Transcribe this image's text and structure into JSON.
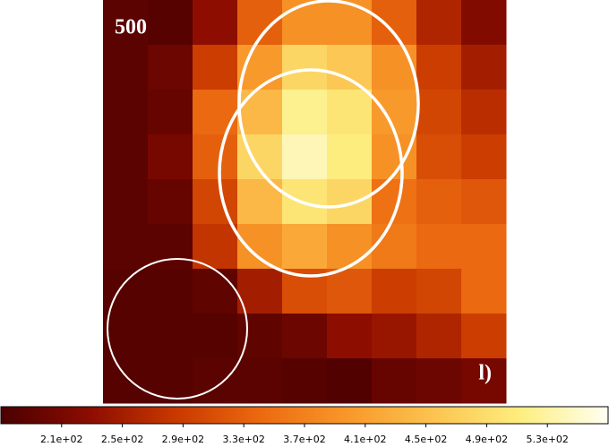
{
  "chart_data": {
    "type": "heatmap",
    "annotations": [
      "500",
      "l)"
    ],
    "values": [
      [
        185,
        180,
        230,
        330,
        390,
        390,
        330,
        260,
        220
      ],
      [
        185,
        200,
        290,
        400,
        480,
        460,
        390,
        290,
        250
      ],
      [
        185,
        195,
        340,
        440,
        520,
        500,
        400,
        300,
        270
      ],
      [
        185,
        210,
        330,
        480,
        540,
        510,
        390,
        310,
        290
      ],
      [
        185,
        195,
        300,
        440,
        500,
        480,
        350,
        330,
        320
      ],
      [
        185,
        185,
        280,
        390,
        420,
        390,
        360,
        340,
        340
      ],
      [
        180,
        180,
        190,
        250,
        310,
        320,
        290,
        300,
        340
      ],
      [
        180,
        180,
        180,
        190,
        200,
        230,
        240,
        260,
        290
      ],
      [
        180,
        180,
        185,
        185,
        180,
        175,
        195,
        200,
        210
      ]
    ],
    "zlim": [
      170,
      570
    ],
    "zticks": [
      {
        "value": 210,
        "label": "2.1e+02"
      },
      {
        "value": 250,
        "label": "2.5e+02"
      },
      {
        "value": 290,
        "label": "2.9e+02"
      },
      {
        "value": 330,
        "label": "3.3e+02"
      },
      {
        "value": 370,
        "label": "3.7e+02"
      },
      {
        "value": 410,
        "label": "4.1e+02"
      },
      {
        "value": 450,
        "label": "4.5e+02"
      },
      {
        "value": 490,
        "label": "4.9e+02"
      },
      {
        "value": 530,
        "label": "5.3e+02"
      }
    ],
    "colormap": [
      "#4a0000",
      "#8a0c00",
      "#c83800",
      "#ec6a10",
      "#f8982a",
      "#fcc450",
      "#fdee80",
      "#fffff2"
    ]
  }
}
